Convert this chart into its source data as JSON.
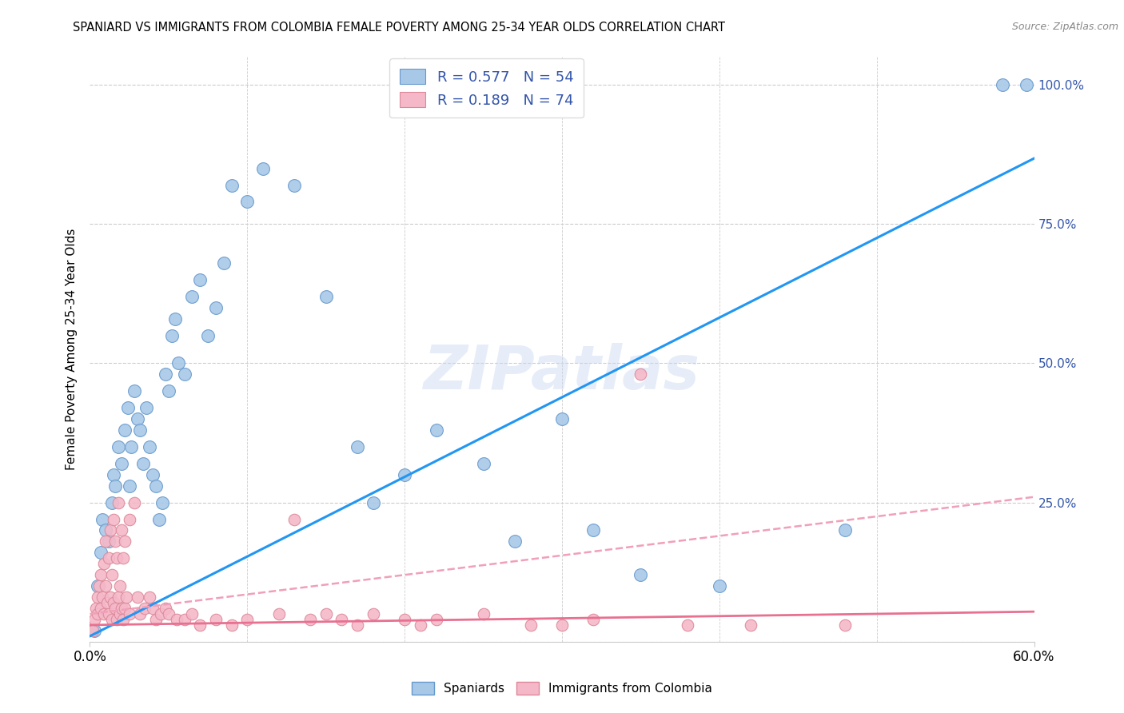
{
  "title": "SPANIARD VS IMMIGRANTS FROM COLOMBIA FEMALE POVERTY AMONG 25-34 YEAR OLDS CORRELATION CHART",
  "source": "Source: ZipAtlas.com",
  "ylabel": "Female Poverty Among 25-34 Year Olds",
  "y_ticks": [
    0.0,
    0.25,
    0.5,
    0.75,
    1.0
  ],
  "y_tick_labels": [
    "",
    "25.0%",
    "50.0%",
    "75.0%",
    "100.0%"
  ],
  "x_min": 0.0,
  "x_max": 0.6,
  "y_min": 0.0,
  "y_max": 1.05,
  "watermark": "ZIPatlas",
  "blue_color": "#a8c8e8",
  "blue_edge": "#6699cc",
  "pink_color": "#f4b8c8",
  "pink_edge": "#dd8899",
  "legend_blue_R": "0.577",
  "legend_blue_N": "54",
  "legend_pink_R": "0.189",
  "legend_pink_N": "74",
  "blue_scatter": [
    [
      0.003,
      0.02
    ],
    [
      0.005,
      0.1
    ],
    [
      0.007,
      0.16
    ],
    [
      0.008,
      0.22
    ],
    [
      0.01,
      0.2
    ],
    [
      0.012,
      0.18
    ],
    [
      0.014,
      0.25
    ],
    [
      0.015,
      0.3
    ],
    [
      0.016,
      0.28
    ],
    [
      0.018,
      0.35
    ],
    [
      0.02,
      0.32
    ],
    [
      0.022,
      0.38
    ],
    [
      0.024,
      0.42
    ],
    [
      0.025,
      0.28
    ],
    [
      0.026,
      0.35
    ],
    [
      0.028,
      0.45
    ],
    [
      0.03,
      0.4
    ],
    [
      0.032,
      0.38
    ],
    [
      0.034,
      0.32
    ],
    [
      0.036,
      0.42
    ],
    [
      0.038,
      0.35
    ],
    [
      0.04,
      0.3
    ],
    [
      0.042,
      0.28
    ],
    [
      0.044,
      0.22
    ],
    [
      0.046,
      0.25
    ],
    [
      0.048,
      0.48
    ],
    [
      0.05,
      0.45
    ],
    [
      0.052,
      0.55
    ],
    [
      0.054,
      0.58
    ],
    [
      0.056,
      0.5
    ],
    [
      0.06,
      0.48
    ],
    [
      0.065,
      0.62
    ],
    [
      0.07,
      0.65
    ],
    [
      0.075,
      0.55
    ],
    [
      0.08,
      0.6
    ],
    [
      0.085,
      0.68
    ],
    [
      0.09,
      0.82
    ],
    [
      0.1,
      0.79
    ],
    [
      0.11,
      0.85
    ],
    [
      0.13,
      0.82
    ],
    [
      0.15,
      0.62
    ],
    [
      0.17,
      0.35
    ],
    [
      0.18,
      0.25
    ],
    [
      0.2,
      0.3
    ],
    [
      0.22,
      0.38
    ],
    [
      0.25,
      0.32
    ],
    [
      0.27,
      0.18
    ],
    [
      0.3,
      0.4
    ],
    [
      0.32,
      0.2
    ],
    [
      0.35,
      0.12
    ],
    [
      0.4,
      0.1
    ],
    [
      0.48,
      0.2
    ],
    [
      0.58,
      1.0
    ],
    [
      0.595,
      1.0
    ]
  ],
  "pink_scatter": [
    [
      0.002,
      0.02
    ],
    [
      0.003,
      0.04
    ],
    [
      0.004,
      0.06
    ],
    [
      0.005,
      0.08
    ],
    [
      0.005,
      0.05
    ],
    [
      0.006,
      0.1
    ],
    [
      0.007,
      0.12
    ],
    [
      0.007,
      0.06
    ],
    [
      0.008,
      0.08
    ],
    [
      0.009,
      0.14
    ],
    [
      0.009,
      0.05
    ],
    [
      0.01,
      0.1
    ],
    [
      0.01,
      0.18
    ],
    [
      0.011,
      0.07
    ],
    [
      0.012,
      0.15
    ],
    [
      0.012,
      0.05
    ],
    [
      0.013,
      0.2
    ],
    [
      0.013,
      0.08
    ],
    [
      0.014,
      0.12
    ],
    [
      0.014,
      0.04
    ],
    [
      0.015,
      0.22
    ],
    [
      0.015,
      0.07
    ],
    [
      0.016,
      0.18
    ],
    [
      0.016,
      0.06
    ],
    [
      0.017,
      0.15
    ],
    [
      0.017,
      0.04
    ],
    [
      0.018,
      0.25
    ],
    [
      0.018,
      0.08
    ],
    [
      0.019,
      0.1
    ],
    [
      0.019,
      0.05
    ],
    [
      0.02,
      0.2
    ],
    [
      0.02,
      0.06
    ],
    [
      0.021,
      0.15
    ],
    [
      0.021,
      0.04
    ],
    [
      0.022,
      0.18
    ],
    [
      0.022,
      0.06
    ],
    [
      0.023,
      0.08
    ],
    [
      0.025,
      0.22
    ],
    [
      0.025,
      0.05
    ],
    [
      0.028,
      0.25
    ],
    [
      0.03,
      0.08
    ],
    [
      0.032,
      0.05
    ],
    [
      0.035,
      0.06
    ],
    [
      0.038,
      0.08
    ],
    [
      0.04,
      0.06
    ],
    [
      0.042,
      0.04
    ],
    [
      0.045,
      0.05
    ],
    [
      0.048,
      0.06
    ],
    [
      0.05,
      0.05
    ],
    [
      0.055,
      0.04
    ],
    [
      0.06,
      0.04
    ],
    [
      0.065,
      0.05
    ],
    [
      0.07,
      0.03
    ],
    [
      0.08,
      0.04
    ],
    [
      0.09,
      0.03
    ],
    [
      0.1,
      0.04
    ],
    [
      0.12,
      0.05
    ],
    [
      0.13,
      0.22
    ],
    [
      0.14,
      0.04
    ],
    [
      0.15,
      0.05
    ],
    [
      0.16,
      0.04
    ],
    [
      0.17,
      0.03
    ],
    [
      0.18,
      0.05
    ],
    [
      0.2,
      0.04
    ],
    [
      0.21,
      0.03
    ],
    [
      0.22,
      0.04
    ],
    [
      0.25,
      0.05
    ],
    [
      0.28,
      0.03
    ],
    [
      0.3,
      0.03
    ],
    [
      0.32,
      0.04
    ],
    [
      0.35,
      0.48
    ],
    [
      0.38,
      0.03
    ],
    [
      0.42,
      0.03
    ],
    [
      0.48,
      0.03
    ]
  ],
  "blue_line_color": "#2196f3",
  "pink_line_color": "#e87090",
  "pink_dash_color": "#f0a0b8",
  "grid_color": "#cccccc",
  "axis_label_color": "#3355aa",
  "right_axis_color": "#3355aa",
  "blue_line_intercept": 0.01,
  "blue_line_slope": 1.43,
  "pink_line_intercept": 0.03,
  "pink_line_slope": 0.04,
  "pink_dash_intercept": 0.05,
  "pink_dash_slope": 0.35
}
